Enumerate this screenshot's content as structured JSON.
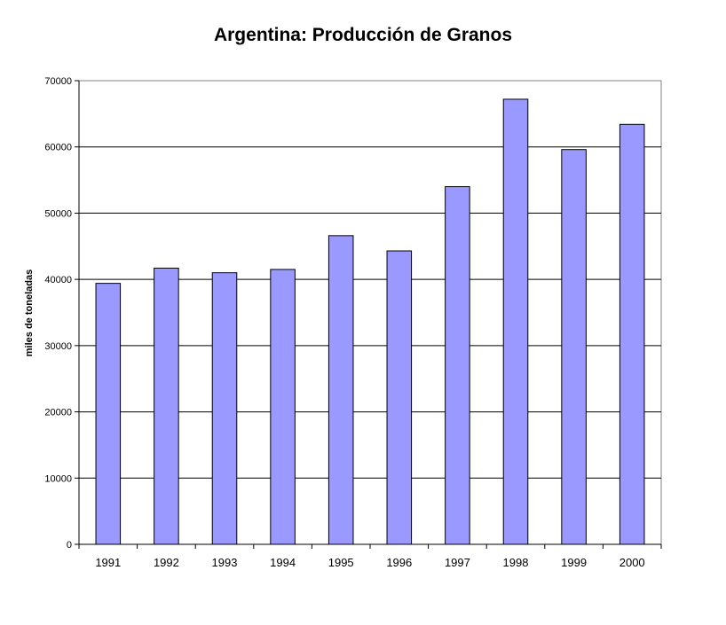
{
  "chart_data": {
    "type": "bar",
    "title": "Argentina: Producción de Granos",
    "ylabel": "miles de toneladas",
    "xlabel": "",
    "categories": [
      "1991",
      "1992",
      "1993",
      "1994",
      "1995",
      "1996",
      "1997",
      "1998",
      "1999",
      "2000"
    ],
    "values": [
      39400,
      41700,
      41000,
      41500,
      46600,
      44300,
      54000,
      67200,
      59600,
      63400
    ],
    "ylim": [
      0,
      70000
    ],
    "yticks": [
      "0",
      "10000",
      "20000",
      "30000",
      "40000",
      "50000",
      "60000",
      "70000"
    ],
    "grid": true,
    "legend": "none",
    "colors": {
      "bar_fill": "#9999ff",
      "bar_stroke": "#000000",
      "grid": "#000000",
      "plot_border": "#808080"
    }
  }
}
